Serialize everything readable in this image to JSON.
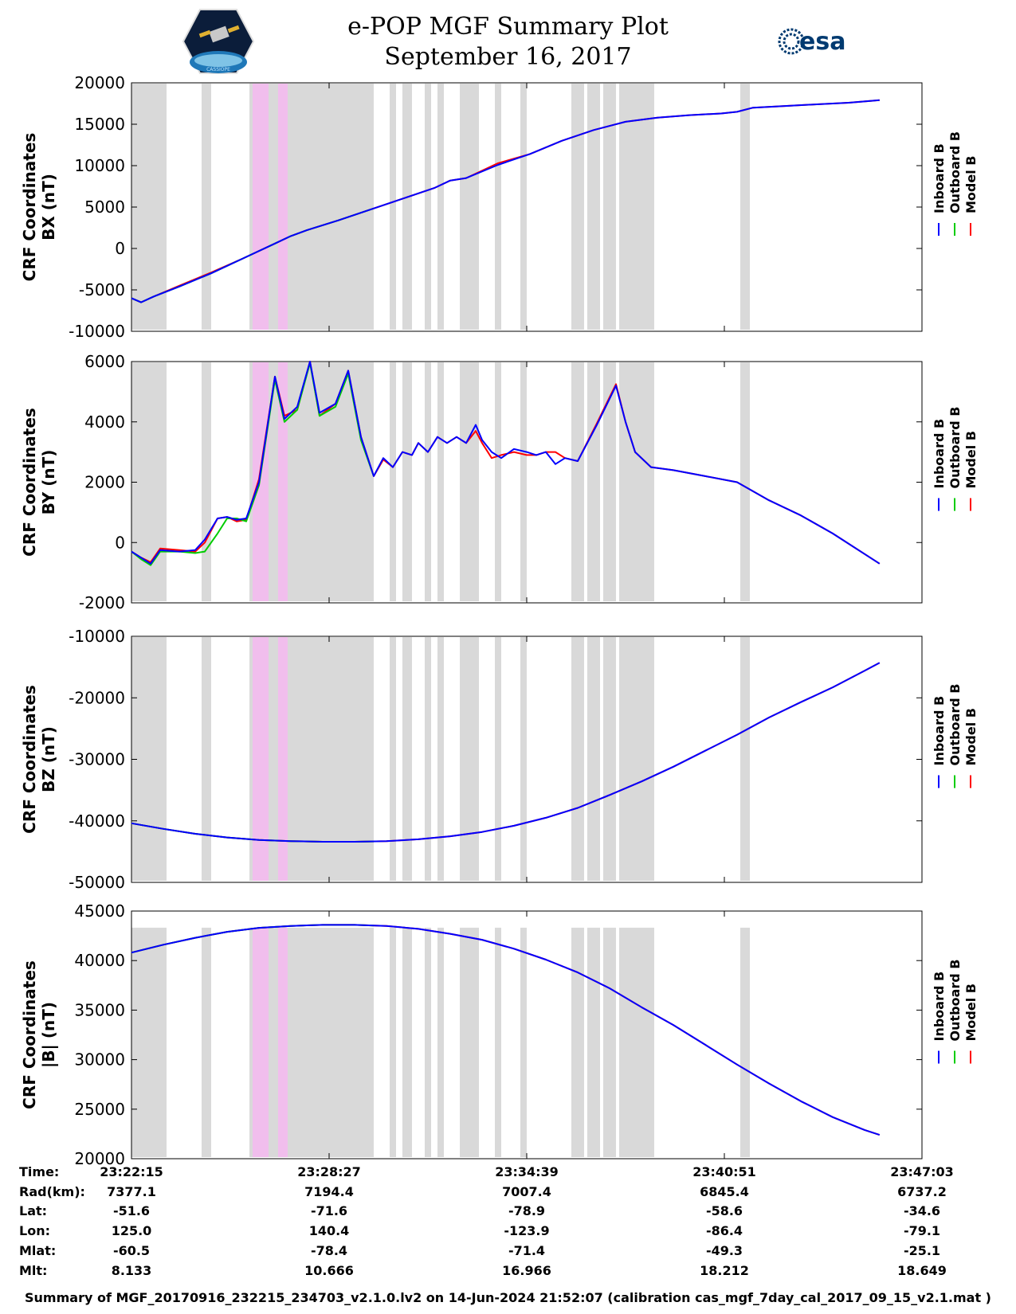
{
  "header": {
    "title": "e-POP MGF Summary Plot",
    "date": "September 16, 2017",
    "esa_logo_text": "esa",
    "cassiope_logo_text": "CASSIOPE"
  },
  "chart_data": {
    "type": "line",
    "time_ticks": [
      "23:22:15",
      "23:28:27",
      "23:34:39",
      "23:40:51",
      "23:47:03"
    ],
    "legend": [
      {
        "name": "Inboard B",
        "color": "#0000ff"
      },
      {
        "name": "Outboard B",
        "color": "#00cc00"
      },
      {
        "name": "Model B",
        "color": "#ff0000"
      }
    ],
    "shading_colors": {
      "gray": "#d9d9d9",
      "pink": "#f5b8f0"
    },
    "gray_intervals_min": [
      [
        0.0,
        1.1
      ],
      [
        2.2,
        2.5
      ],
      [
        3.7,
        7.6
      ],
      [
        8.1,
        8.3
      ],
      [
        8.5,
        8.8
      ],
      [
        9.2,
        9.4
      ],
      [
        9.6,
        9.8
      ],
      [
        10.3,
        10.9
      ],
      [
        11.4,
        11.6
      ],
      [
        12.2,
        12.4
      ],
      [
        13.8,
        14.2
      ],
      [
        14.3,
        14.7
      ],
      [
        14.8,
        15.2
      ],
      [
        15.3,
        16.4
      ],
      [
        19.1,
        19.4
      ]
    ],
    "pink_intervals_min": [
      [
        3.8,
        4.3
      ],
      [
        4.6,
        4.9
      ]
    ],
    "panels": [
      {
        "id": "bx",
        "ylabel_line1": "CRF Coordinates",
        "ylabel_line2": "BX (nT)",
        "ylim": [
          -10000,
          20000
        ],
        "yticks": [
          "20000",
          "15000",
          "10000",
          "5000",
          "0",
          "-5000",
          "-10000"
        ],
        "reversed": false,
        "shade_top": 20000,
        "t": [
          0,
          0.3,
          0.7,
          1.5,
          2.5,
          3.5,
          4.5,
          5.0,
          5.5,
          6.5,
          7.5,
          8.5,
          9.5,
          10.0,
          10.5,
          11.5,
          12.5,
          13.5,
          14.5,
          15.5,
          16.5,
          17.5,
          18.5,
          19.0,
          19.5,
          20.5,
          21.5,
          22.5,
          23.47
        ],
        "series": [
          {
            "name": "Inboard B",
            "values": [
              -6000,
              -6500,
              -5800,
              -4600,
              -3000,
              -1200,
              600,
              1500,
              2200,
              3400,
              4700,
              6000,
              7300,
              8200,
              8500,
              10100,
              11400,
              13000,
              14300,
              15300,
              15800,
              16100,
              16300,
              16500,
              17000,
              17200,
              17400,
              17600,
              17900
            ]
          },
          {
            "name": "Outboard B",
            "values": [
              -6000,
              -6500,
              -5800,
              -4600,
              -3000,
              -1200,
              600,
              1500,
              2200,
              3400,
              4700,
              6000,
              7300,
              8200,
              8500,
              10100,
              11400,
              13000,
              14300,
              15300,
              15800,
              16100,
              16300,
              16500,
              17000,
              17200,
              17400,
              17600,
              17900
            ]
          },
          {
            "name": "Model B",
            "values": [
              -6000,
              -6500,
              -5800,
              -4500,
              -2900,
              -1200,
              600,
              1500,
              2200,
              3400,
              4700,
              6000,
              7300,
              8200,
              8500,
              10300,
              11400,
              13000,
              14300,
              15300,
              15800,
              16100,
              16300,
              16500,
              17000,
              17200,
              17400,
              17600,
              17900
            ]
          }
        ]
      },
      {
        "id": "by",
        "ylabel_line1": "CRF Coordinates",
        "ylabel_line2": "BY (nT)",
        "ylim": [
          -2000,
          6000
        ],
        "yticks": [
          "6000",
          "4000",
          "2000",
          "0",
          "-2000"
        ],
        "reversed": false,
        "shade_top": 6000,
        "t": [
          0,
          0.3,
          0.6,
          0.9,
          1.5,
          2.0,
          2.3,
          2.7,
          3.0,
          3.3,
          3.6,
          4.0,
          4.5,
          4.8,
          5.2,
          5.6,
          5.9,
          6.4,
          6.8,
          7.2,
          7.6,
          7.9,
          8.2,
          8.5,
          8.8,
          9.0,
          9.3,
          9.6,
          9.9,
          10.2,
          10.5,
          10.8,
          11.0,
          11.3,
          11.6,
          12.0,
          12.4,
          12.7,
          13.0,
          13.3,
          13.6,
          14.0,
          14.6,
          15.2,
          15.5,
          15.8,
          16.3,
          17.0,
          18.0,
          19.0,
          20.0,
          21.0,
          22.0,
          23.47
        ],
        "series": [
          {
            "name": "Inboard B",
            "values": [
              -300,
              -500,
              -700,
              -250,
              -300,
              -250,
              100,
              800,
              850,
              750,
              800,
              2000,
              5500,
              4100,
              4500,
              6000,
              4300,
              4600,
              5700,
              3500,
              2200,
              2800,
              2500,
              3000,
              2900,
              3300,
              3000,
              3500,
              3300,
              3500,
              3300,
              3900,
              3400,
              3000,
              2800,
              3100,
              3000,
              2900,
              3000,
              2600,
              2800,
              2700,
              3900,
              5200,
              4000,
              3000,
              2500,
              2400,
              2200,
              2000,
              1400,
              900,
              300,
              -700
            ]
          },
          {
            "name": "Outboard B",
            "values": [
              -300,
              -550,
              -750,
              -300,
              -300,
              -350,
              -300,
              300,
              800,
              800,
              700,
              1900,
              5400,
              4000,
              4400,
              5950,
              4200,
              4500,
              5600,
              3400,
              2200,
              2900,
              2500,
              3100,
              3000,
              3400,
              3100,
              3600,
              3400,
              3500,
              3300,
              3700,
              3300,
              3000,
              2900,
              3000,
              3000,
              2900,
              2900,
              2700,
              2700,
              2700,
              3900,
              5200,
              4000,
              3000,
              2500,
              2400,
              2200,
              2000,
              1400,
              900,
              300,
              -700
            ]
          },
          {
            "name": "Model B",
            "values": [
              -300,
              -500,
              -650,
              -200,
              -250,
              -300,
              0,
              800,
              850,
              700,
              750,
              2100,
              5500,
              4200,
              4400,
              6000,
              4200,
              4600,
              5700,
              3500,
              2200,
              2750,
              2500,
              3000,
              2900,
              3300,
              3000,
              3500,
              3300,
              3500,
              3300,
              3700,
              3300,
              2800,
              2900,
              3000,
              2900,
              2900,
              3000,
              3000,
              2800,
              2700,
              3950,
              5250,
              4000,
              3000,
              2500,
              2400,
              2200,
              2000,
              1400,
              900,
              300,
              -700
            ]
          }
        ]
      },
      {
        "id": "bz",
        "ylabel_line1": "CRF Coordinates",
        "ylabel_line2": "BZ (nT)",
        "ylim": [
          -50000,
          -10000
        ],
        "yticks": [
          "-10000",
          "-20000",
          "-30000",
          "-40000",
          "-50000"
        ],
        "reversed": true,
        "shade_top": -10000,
        "t": [
          0,
          1,
          2,
          3,
          4,
          5,
          6,
          7,
          8,
          9,
          10,
          11,
          12,
          13,
          14,
          15,
          16,
          17,
          18,
          19,
          20,
          21,
          22,
          23,
          23.47
        ],
        "series": [
          {
            "name": "Inboard B",
            "values": [
              -40400,
              -41300,
              -42100,
              -42700,
              -43100,
              -43300,
              -43400,
              -43400,
              -43300,
              -43000,
              -42500,
              -41800,
              -40800,
              -39500,
              -37900,
              -35800,
              -33600,
              -31200,
              -28600,
              -26000,
              -23200,
              -20700,
              -18300,
              -15600,
              -14300
            ]
          },
          {
            "name": "Outboard B",
            "values": [
              -40400,
              -41300,
              -42100,
              -42700,
              -43100,
              -43300,
              -43400,
              -43400,
              -43300,
              -43000,
              -42500,
              -41800,
              -40800,
              -39500,
              -37900,
              -35800,
              -33600,
              -31200,
              -28600,
              -26000,
              -23200,
              -20700,
              -18300,
              -15600,
              -14300
            ]
          },
          {
            "name": "Model B",
            "values": [
              -40400,
              -41300,
              -42100,
              -42700,
              -43100,
              -43300,
              -43400,
              -43400,
              -43300,
              -43000,
              -42500,
              -41800,
              -40800,
              -39500,
              -37900,
              -35800,
              -33600,
              -31200,
              -28600,
              -26000,
              -23200,
              -20700,
              -18300,
              -15600,
              -14300
            ]
          }
        ]
      },
      {
        "id": "babs",
        "ylabel_line1": "CRF Coordinates",
        "ylabel_line2": "|B| (nT)",
        "ylim": [
          20000,
          45000
        ],
        "yticks": [
          "45000",
          "40000",
          "35000",
          "30000",
          "25000",
          "20000"
        ],
        "reversed": false,
        "shade_top": 43400,
        "t": [
          0,
          1,
          2,
          3,
          4,
          5,
          6,
          7,
          8,
          9,
          10,
          11,
          12,
          13,
          14,
          15,
          16,
          17,
          18,
          19,
          20,
          21,
          22,
          23,
          23.47
        ],
        "series": [
          {
            "name": "Inboard B",
            "values": [
              40800,
              41600,
              42300,
              42900,
              43300,
              43500,
              43600,
              43600,
              43500,
              43200,
              42700,
              42100,
              41200,
              40100,
              38800,
              37200,
              35300,
              33500,
              31500,
              29500,
              27600,
              25800,
              24200,
              22900,
              22400
            ]
          },
          {
            "name": "Outboard B",
            "values": [
              40800,
              41600,
              42300,
              42900,
              43300,
              43500,
              43600,
              43600,
              43500,
              43200,
              42700,
              42100,
              41200,
              40100,
              38800,
              37200,
              35300,
              33500,
              31500,
              29500,
              27600,
              25800,
              24200,
              22900,
              22400
            ]
          },
          {
            "name": "Model B",
            "values": [
              40800,
              41600,
              42300,
              42900,
              43300,
              43500,
              43600,
              43600,
              43500,
              43200,
              42700,
              42100,
              41200,
              40100,
              38800,
              37200,
              35300,
              33500,
              31500,
              29500,
              27600,
              25800,
              24200,
              22900,
              22400
            ]
          }
        ]
      }
    ],
    "green_until_min": 7.6
  },
  "ephemeris": {
    "labels": [
      "Time:",
      "Rad(km):",
      "Lat:",
      "Lon:",
      "Mlat:",
      "Mlt:"
    ],
    "rows": [
      [
        "23:22:15",
        "23:28:27",
        "23:34:39",
        "23:40:51",
        "23:47:03"
      ],
      [
        "7377.1",
        "7194.4",
        "7007.4",
        "6845.4",
        "6737.2"
      ],
      [
        "-51.6",
        "-71.6",
        "-78.9",
        "-58.6",
        "-34.6"
      ],
      [
        "125.0",
        "140.4",
        "-123.9",
        "-86.4",
        "-79.1"
      ],
      [
        "-60.5",
        "-78.4",
        "-71.4",
        "-49.3",
        "-25.1"
      ],
      [
        "8.133",
        "10.666",
        "16.966",
        "18.212",
        "18.649"
      ]
    ]
  },
  "footer": "Summary of MGF_20170916_232215_234703_v2.1.0.lv2 on 14-Jun-2024 21:52:07 (calibration cas_mgf_7day_cal_2017_09_15_v2.1.mat )"
}
